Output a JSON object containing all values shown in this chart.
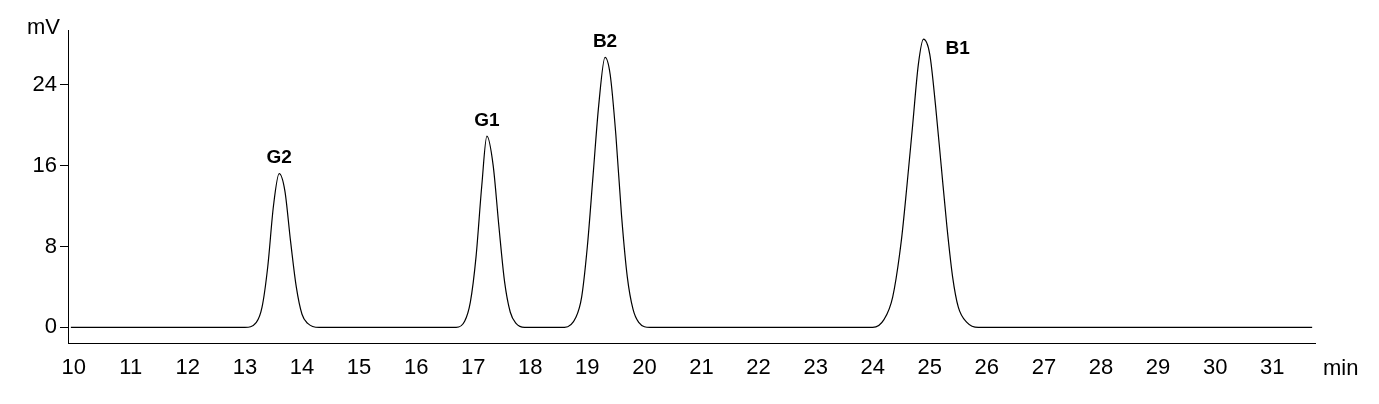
{
  "chart_data": {
    "type": "line",
    "xlabel": "min",
    "ylabel": "mV",
    "xlim": [
      9.9,
      31.75
    ],
    "xticks": [
      10,
      11,
      12,
      13,
      14,
      15,
      16,
      17,
      18,
      19,
      20,
      21,
      22,
      23,
      24,
      25,
      26,
      27,
      28,
      29,
      30,
      31
    ],
    "ylim": [
      -1.6,
      29.4
    ],
    "yticks": [
      0,
      8,
      16,
      24
    ],
    "grid": false,
    "legend": false,
    "marker": "none",
    "line_style": "solid",
    "series": [
      {
        "color": "#000000",
        "x": [
          9.95,
          13.0,
          13.2,
          13.3,
          13.4,
          13.5,
          13.6,
          13.7,
          13.8,
          13.9,
          14.0,
          14.1,
          14.3,
          16.7,
          16.85,
          16.95,
          17.05,
          17.15,
          17.24,
          17.35,
          17.45,
          17.55,
          17.65,
          17.75,
          17.9,
          18.6,
          18.8,
          18.9,
          19.0,
          19.1,
          19.2,
          19.31,
          19.4,
          19.5,
          19.6,
          19.7,
          19.8,
          19.9,
          20.1,
          24.0,
          24.2,
          24.35,
          24.5,
          24.6,
          24.7,
          24.8,
          24.89,
          25.0,
          25.1,
          25.2,
          25.3,
          25.4,
          25.5,
          25.65,
          25.85,
          31.7
        ],
        "values": [
          0,
          0,
          0.5,
          2,
          6,
          12,
          15.2,
          13.5,
          8.5,
          4,
          1.3,
          0.4,
          0,
          0,
          0.6,
          2.5,
          7,
          14,
          18.9,
          16,
          10,
          4.5,
          1.5,
          0.4,
          0,
          0,
          1,
          3,
          8,
          15,
          22,
          26.7,
          25,
          19,
          11,
          5,
          1.8,
          0.5,
          0,
          0,
          0.8,
          3,
          8.5,
          14,
          20,
          26,
          28.5,
          27,
          22,
          16,
          10,
          5,
          2,
          0.5,
          0,
          0
        ]
      }
    ],
    "annotations": [
      {
        "text": "G2",
        "x": 13.6,
        "y": 15.2
      },
      {
        "text": "G1",
        "x": 17.24,
        "y": 18.9
      },
      {
        "text": "B2",
        "x": 19.31,
        "y": 26.7
      },
      {
        "text": "B1",
        "x": 24.89,
        "y": 28.5
      }
    ]
  }
}
